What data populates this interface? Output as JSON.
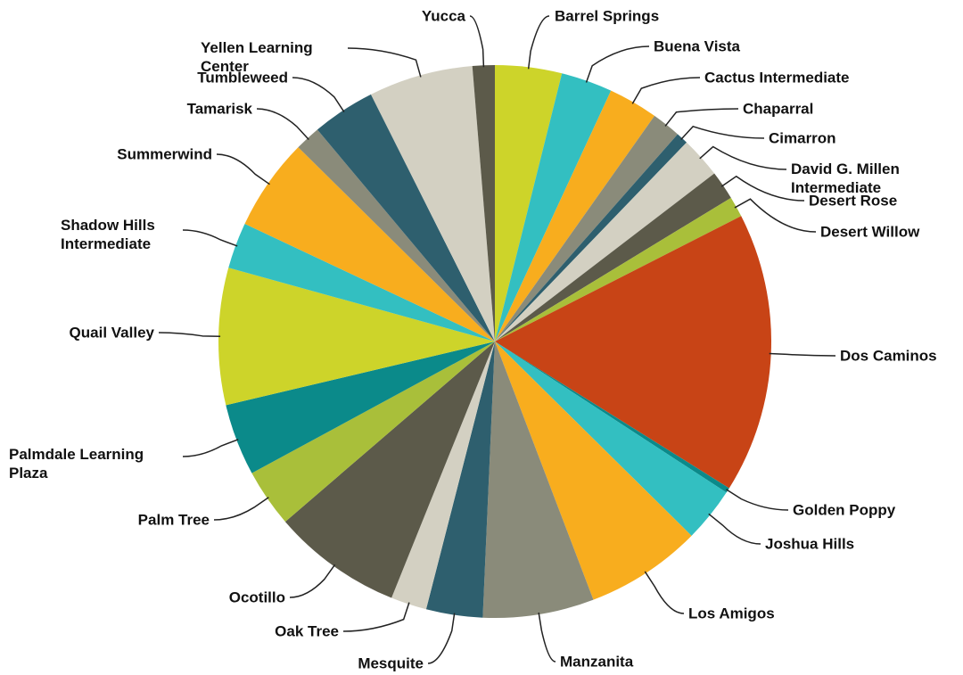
{
  "chart_data": {
    "type": "pie",
    "categories": [
      "Barrel Springs",
      "Buena Vista",
      "Cactus Intermediate",
      "Chaparral",
      "Cimarron",
      "David G. Millen Intermediate",
      "Desert Rose",
      "Desert Willow",
      "Dos Caminos",
      "Golden Poppy",
      "Joshua Hills",
      "Los Amigos",
      "Manzanita",
      "Mesquite",
      "Oak Tree",
      "Ocotillo",
      "Palm Tree",
      "Palmdale Learning Plaza",
      "Quail Valley",
      "Shadow Hills Intermediate",
      "Summerwind",
      "Tamarisk",
      "Tumbleweed",
      "Yellen Learning Center",
      "Yucca"
    ],
    "values": [
      3.9,
      3.0,
      2.9,
      1.7,
      0.7,
      2.4,
      1.7,
      1.2,
      16.4,
      0.3,
      3.2,
      6.8,
      6.5,
      3.3,
      2.1,
      7.6,
      3.4,
      4.2,
      8.0,
      2.7,
      5.4,
      1.5,
      3.7,
      6.1,
      1.3
    ],
    "colors": [
      "#cdd42a",
      "#33bfc1",
      "#f8ad1e",
      "#8a8b7a",
      "#2e5f6e",
      "#d3d0c2",
      "#5c5a4a",
      "#a9bf3a",
      "#c84416",
      "#0b8a8a",
      "#33bfc1",
      "#f8ad1e",
      "#8a8b7a",
      "#2e5f6e",
      "#d3d0c2",
      "#5c5a4a",
      "#a9bf3a",
      "#0b8a8a",
      "#cdd42a",
      "#33bfc1",
      "#f8ad1e",
      "#8a8b7a",
      "#2e5f6e",
      "#d3d0c2",
      "#5c5a4a"
    ]
  }
}
